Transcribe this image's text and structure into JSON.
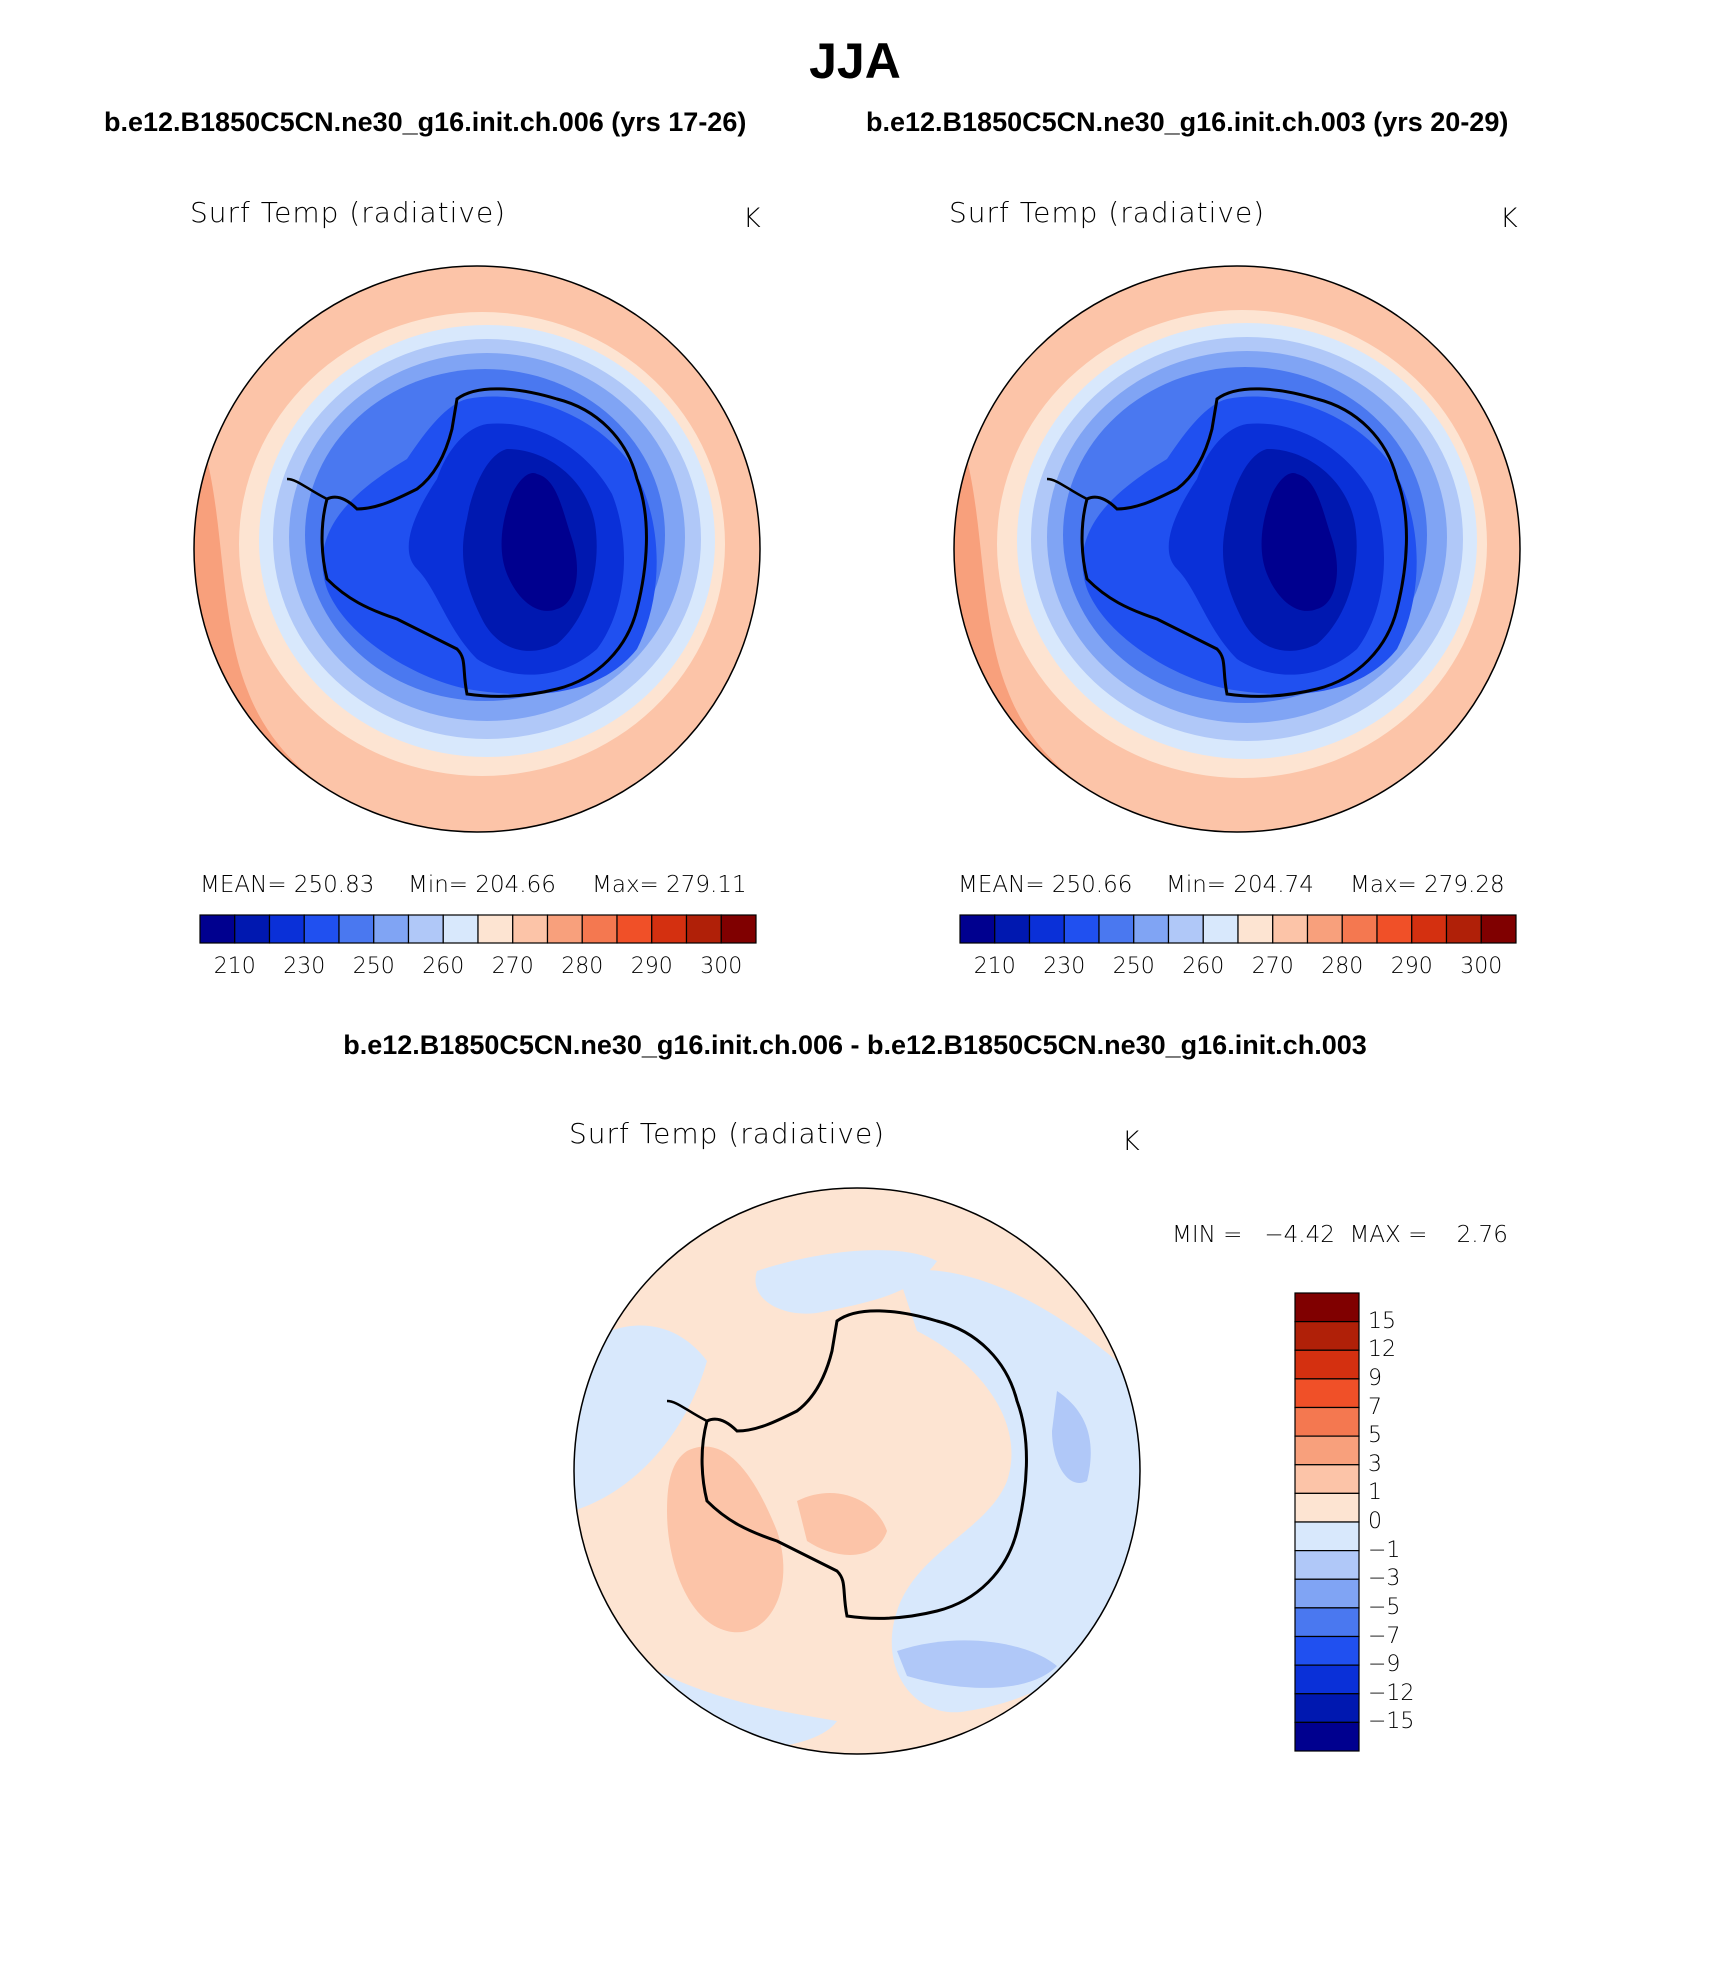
{
  "figure": {
    "season": "JJA",
    "case_a_header": "b.e12.B1850C5CN.ne30_g16.init.ch.006 (yrs 17-26)",
    "case_b_header": "b.e12.B1850C5CN.ne30_g16.init.ch.003 (yrs 20-29)",
    "diff_header": "b.e12.B1850C5CN.ne30_g16.init.ch.006 - b.e12.B1850C5CN.ne30_g16.init.ch.003"
  },
  "panels": {
    "a": {
      "variable": "Surf Temp (radiative)",
      "units": "K",
      "mean_text": "MEAN= 250.83",
      "min_text": "Min= 204.66",
      "max_text": "Max= 279.11"
    },
    "b": {
      "variable": "Surf Temp (radiative)",
      "units": "K",
      "mean_text": "MEAN= 250.66",
      "min_text": "Min= 204.74",
      "max_text": "Max= 279.28"
    },
    "diff": {
      "variable": "Surf Temp (radiative)",
      "units": "K",
      "minmax_text": "MIN =   −4.42  MAX =    2.76"
    }
  },
  "colorbars": {
    "abs_colors": [
      "#00008f",
      "#0018b0",
      "#0a30d8",
      "#2050f0",
      "#4a78f0",
      "#80a4f4",
      "#b0c8f8",
      "#d8e8fc",
      "#fde4d2",
      "#fcc4a8",
      "#f8a07c",
      "#f47850",
      "#f05028",
      "#d43010",
      "#b02008",
      "#800000"
    ],
    "abs_ticks": [
      "210",
      "230",
      "250",
      "260",
      "270",
      "280",
      "290",
      "300"
    ],
    "diff_colors": [
      "#00008f",
      "#0018b0",
      "#0a30d8",
      "#2050f0",
      "#4a78f0",
      "#80a4f4",
      "#b0c8f8",
      "#d8e8fc",
      "#fde4d2",
      "#fcc4a8",
      "#f8a07c",
      "#f47850",
      "#f05028",
      "#d43010",
      "#b02008",
      "#800000"
    ],
    "diff_ticks": [
      "15",
      "12",
      "9",
      "7",
      "5",
      "3",
      "1",
      "0",
      "−1",
      "−3",
      "−5",
      "−7",
      "−9",
      "−12",
      "−15"
    ]
  }
}
